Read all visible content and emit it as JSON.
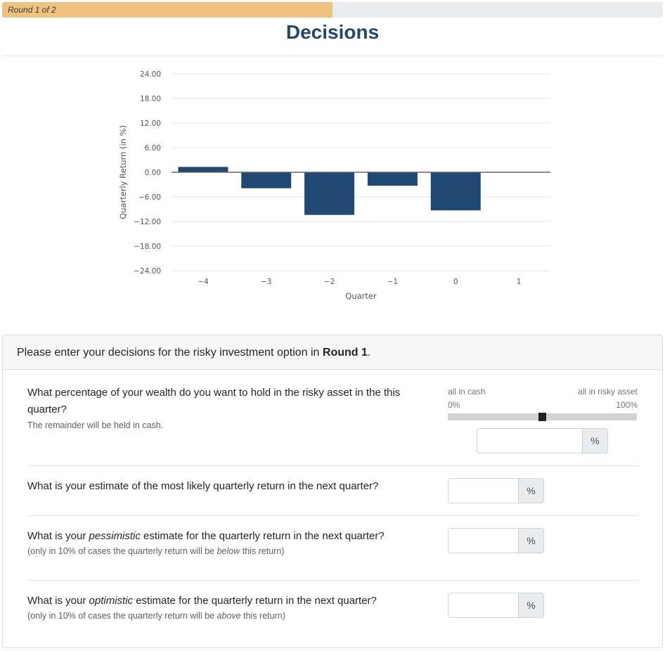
{
  "progress": {
    "label": "Round 1 of 2",
    "value": 0.5
  },
  "page": {
    "title": "Decisions"
  },
  "chart_data": {
    "type": "bar",
    "xlabel": "Quarter",
    "ylabel": "Quarterly Return (in %)",
    "categories": [
      "-4",
      "-3",
      "-2",
      "-1",
      "0",
      "1"
    ],
    "values": [
      1.3,
      -3.9,
      -10.4,
      -3.3,
      -9.3,
      null
    ],
    "yticks": [
      "24.00",
      "18.00",
      "12.00",
      "6.00",
      "0.00",
      "-6.00",
      "-12.00",
      "-18.00",
      "-24.00"
    ],
    "ylim": [
      -24,
      24
    ],
    "color": "#1f4872",
    "grid": true
  },
  "decision_card": {
    "header_prefix": "Please enter your decisions for the risky investment option in ",
    "header_bold": "Round 1",
    "header_suffix": "."
  },
  "q1": {
    "text": "What percentage of your wealth do you want to hold in the risky asset in the this quarter?",
    "note": "The remainder will be held in cash.",
    "slider_left_label": "all in cash",
    "slider_left_pct": "0%",
    "slider_right_label": "all in risky asset",
    "slider_right_pct": "100%",
    "slider_value": 0.5,
    "unit": "%",
    "input_value": ""
  },
  "q2": {
    "text": "What is your estimate of the most likely quarterly return in the next quarter?",
    "unit": "%",
    "input_value": ""
  },
  "q3": {
    "text_before": "What is your ",
    "text_em": "pessimistic",
    "text_after": " estimate for the quarterly return in the next quarter?",
    "note_before": "(only in 10% of cases the quarterly return will be ",
    "note_em": "below",
    "note_after": " this return)",
    "unit": "%",
    "input_value": ""
  },
  "q4": {
    "text_before": "What is your ",
    "text_em": "optimistic",
    "text_after": " estimate for the quarterly return in the next quarter?",
    "note_before": "(only in 10% of cases the quarterly return will be ",
    "note_em": "above",
    "note_after": " this return)",
    "unit": "%",
    "input_value": ""
  }
}
